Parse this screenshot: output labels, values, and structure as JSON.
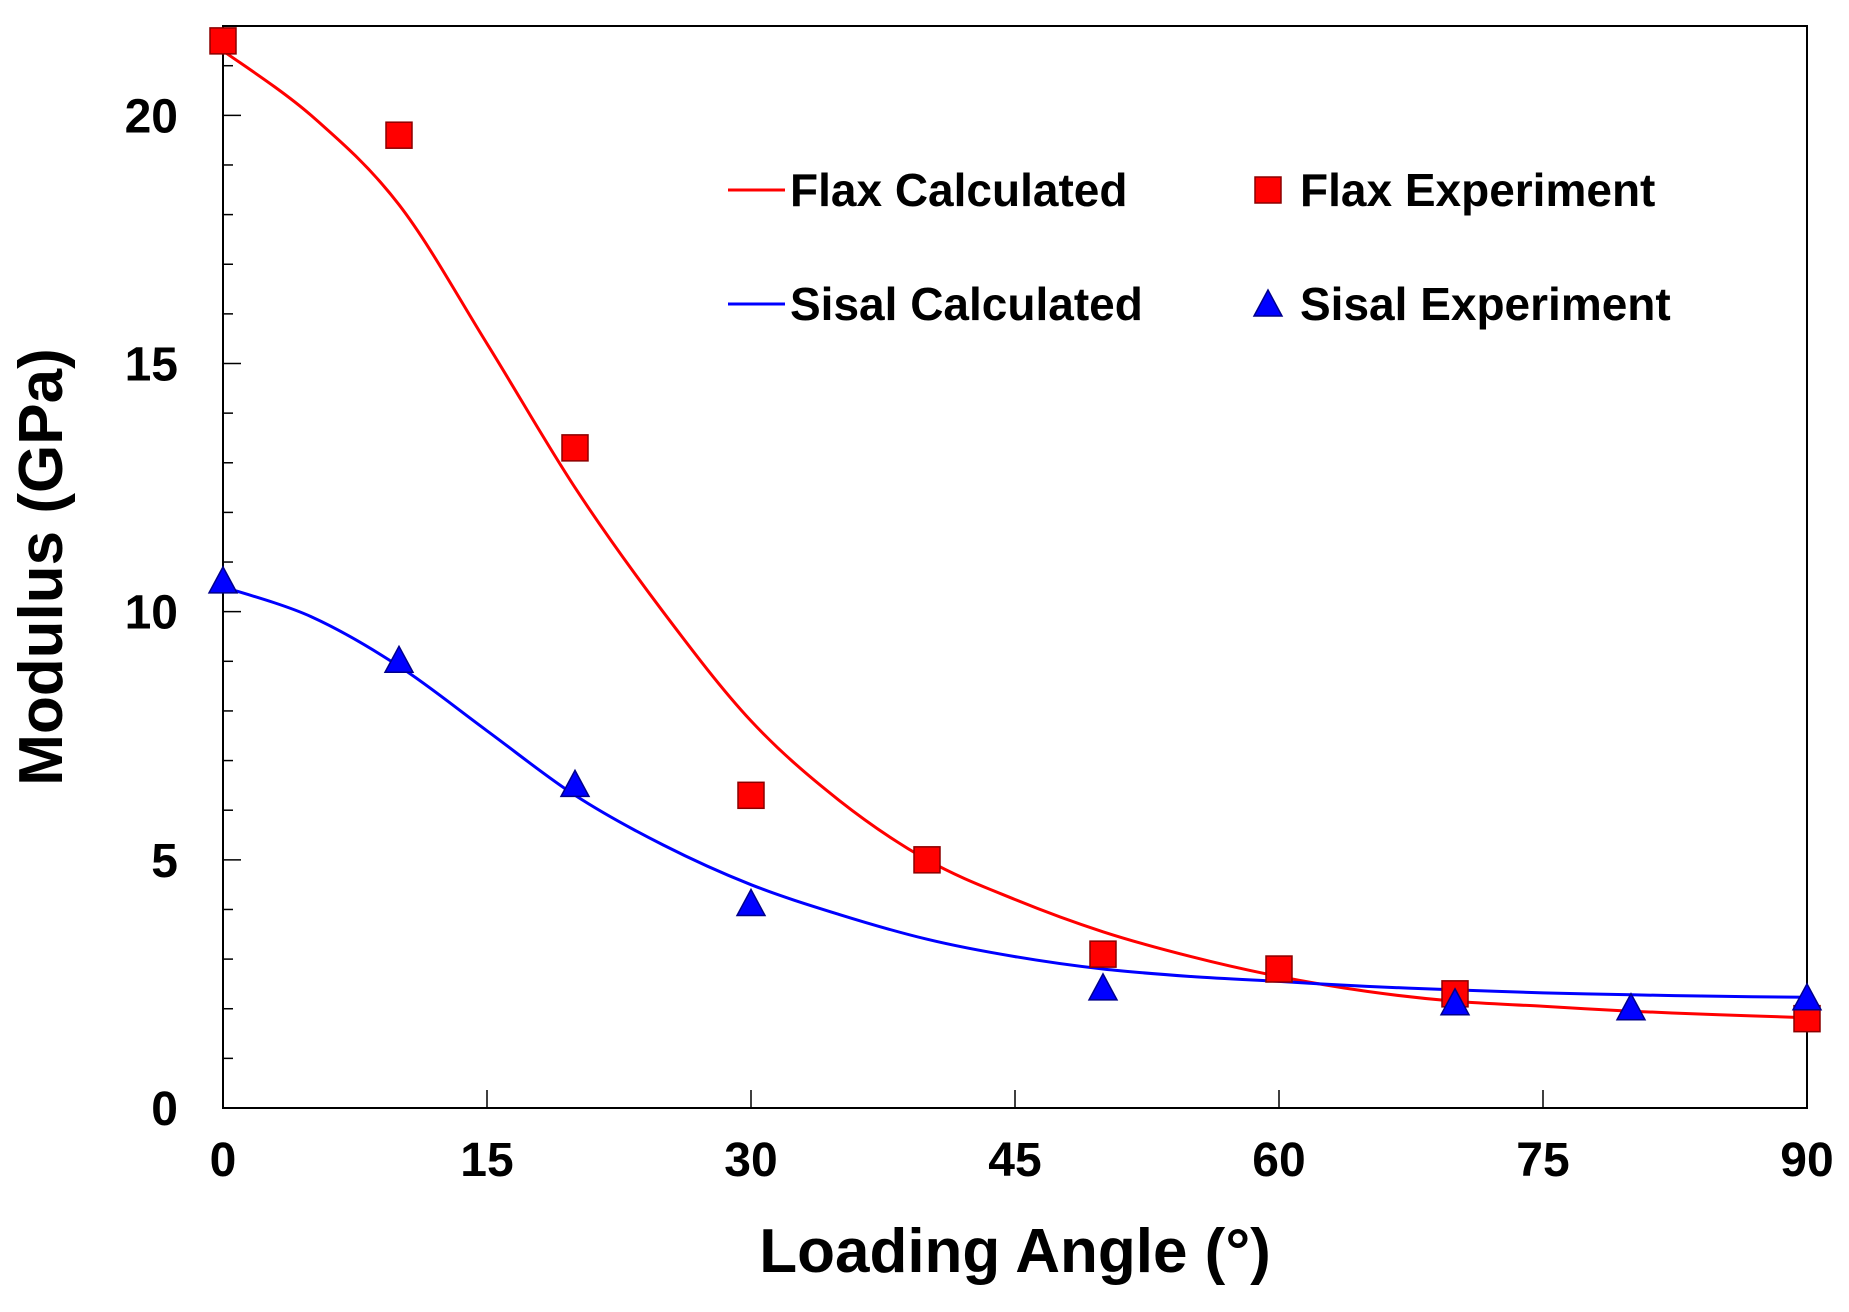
{
  "chart_data": {
    "type": "scatter",
    "xlabel": "Loading Angle (°)",
    "ylabel": "Modulus (GPa)",
    "xlim": [
      0,
      90
    ],
    "ylim": [
      0,
      21.8
    ],
    "xticks": [
      0,
      15,
      30,
      45,
      60,
      75,
      90
    ],
    "yticks": [
      0,
      5,
      10,
      15,
      20
    ],
    "xtick_labels": [
      "0",
      "15",
      "30",
      "45",
      "60",
      "75",
      "90"
    ],
    "ytick_labels": [
      "0",
      "5",
      "10",
      "15",
      "20"
    ],
    "grid": false,
    "legend_position": "top-right",
    "series": [
      {
        "name": "Flax Calculated",
        "kind": "line",
        "color": "#ff0000",
        "x": [
          0,
          5,
          10,
          15,
          20,
          25,
          30,
          35,
          40,
          45,
          50,
          55,
          60,
          65,
          70,
          75,
          80,
          85,
          90
        ],
        "y": [
          21.3,
          20.0,
          18.2,
          15.4,
          12.5,
          10.0,
          7.8,
          6.2,
          5.0,
          4.2,
          3.55,
          3.05,
          2.65,
          2.35,
          2.15,
          2.05,
          1.95,
          1.88,
          1.82
        ]
      },
      {
        "name": "Flax Experiment",
        "kind": "scatter",
        "marker": "square",
        "color": "#ff0000",
        "x": [
          0,
          10,
          20,
          30,
          40,
          50,
          60,
          70,
          90
        ],
        "y": [
          21.5,
          19.6,
          13.3,
          6.3,
          5.0,
          3.1,
          2.8,
          2.3,
          1.8
        ]
      },
      {
        "name": "Sisal Calculated",
        "kind": "line",
        "color": "#0000ff",
        "x": [
          0,
          5,
          10,
          15,
          20,
          25,
          30,
          35,
          40,
          45,
          50,
          55,
          60,
          65,
          70,
          75,
          80,
          85,
          90
        ],
        "y": [
          10.5,
          9.9,
          8.9,
          7.6,
          6.3,
          5.3,
          4.5,
          3.9,
          3.4,
          3.05,
          2.8,
          2.65,
          2.55,
          2.45,
          2.38,
          2.32,
          2.28,
          2.25,
          2.23
        ]
      },
      {
        "name": "Sisal Experiment",
        "kind": "scatter",
        "marker": "triangle",
        "color": "#0000ff",
        "x": [
          0,
          10,
          20,
          30,
          50,
          70,
          80,
          90
        ],
        "y": [
          10.6,
          9.0,
          6.5,
          4.1,
          2.4,
          2.1,
          2.0,
          2.2
        ]
      }
    ]
  }
}
